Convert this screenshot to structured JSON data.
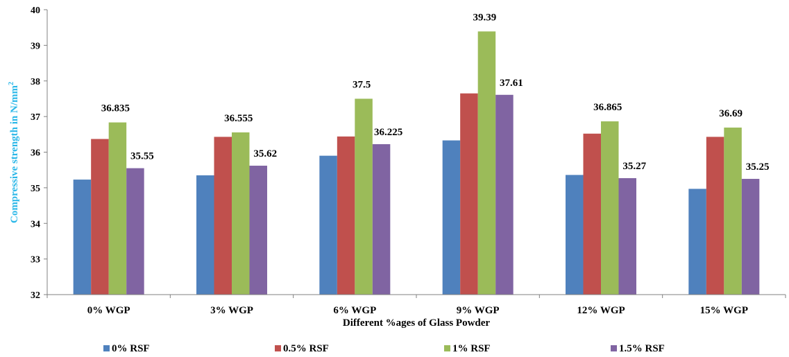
{
  "chart_data": {
    "type": "bar",
    "categories": [
      "0% WGP",
      "3% WGP",
      "6% WGP",
      "9% WGP",
      "12% WGP",
      "15% WGP"
    ],
    "series": [
      {
        "name": "0% RSF",
        "color": "#4F81BD",
        "values": [
          35.23,
          35.35,
          35.9,
          36.33,
          35.36,
          34.97
        ]
      },
      {
        "name": "0.5% RSF",
        "color": "#C0504D",
        "values": [
          36.37,
          36.43,
          36.44,
          37.65,
          36.52,
          36.43
        ]
      },
      {
        "name": "1% RSF",
        "color": "#9BBB59",
        "values": [
          36.835,
          36.555,
          37.5,
          39.39,
          36.865,
          36.69
        ]
      },
      {
        "name": "1.5% RSF",
        "color": "#8064A2",
        "values": [
          35.55,
          35.62,
          36.225,
          37.61,
          35.27,
          35.25
        ]
      }
    ],
    "data_labels": [
      {
        "series": 2,
        "category": 0,
        "text": "36.835"
      },
      {
        "series": 3,
        "category": 0,
        "text": "35.55"
      },
      {
        "series": 2,
        "category": 1,
        "text": "36.555"
      },
      {
        "series": 3,
        "category": 1,
        "text": "35.62"
      },
      {
        "series": 2,
        "category": 2,
        "text": "37.5"
      },
      {
        "series": 3,
        "category": 2,
        "text": "36.225"
      },
      {
        "series": 2,
        "category": 3,
        "text": "39.39"
      },
      {
        "series": 3,
        "category": 3,
        "text": "37.61"
      },
      {
        "series": 2,
        "category": 4,
        "text": "36.865"
      },
      {
        "series": 3,
        "category": 4,
        "text": "35.27"
      },
      {
        "series": 2,
        "category": 5,
        "text": "36.69"
      },
      {
        "series": 3,
        "category": 5,
        "text": "35.25"
      }
    ],
    "title": "",
    "xlabel": "Different %ages of Glass Powder",
    "ylabel_main": "Compressive strength in N/mm",
    "ylabel_sup": "2",
    "ylabel_color": "#2AB7E8",
    "ylim": [
      32,
      40
    ],
    "yticks": [
      "32",
      "33",
      "34",
      "35",
      "36",
      "37",
      "38",
      "39",
      "40"
    ],
    "grid": false,
    "legend_position": "bottom"
  }
}
